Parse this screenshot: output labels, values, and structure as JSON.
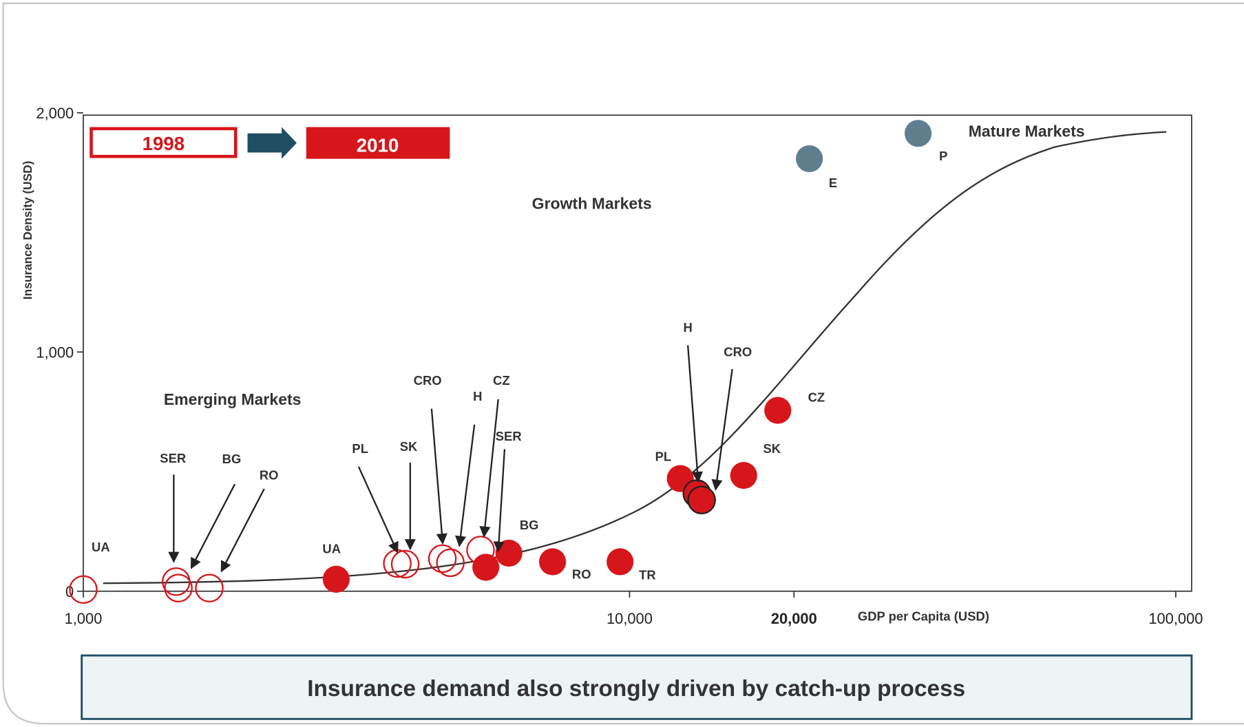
{
  "chart_data": {
    "type": "scatter",
    "xscale": "log",
    "xlim": [
      1000,
      100000
    ],
    "ylim": [
      0,
      2000
    ],
    "xticks": [
      {
        "value": 1000,
        "label": "1,000"
      },
      {
        "value": 10000,
        "label": "10,000"
      },
      {
        "value": 20000,
        "label": "20,000"
      },
      {
        "value": 100000,
        "label": "100,000"
      }
    ],
    "yticks": [
      0,
      {
        "value": 1000,
        "label": "1,000"
      },
      {
        "value": 2000,
        "label": "2,000"
      }
    ],
    "xlabel": "GDP per Capita (USD)",
    "ylabel": "Insurance Density (USD)",
    "annotations": [
      "Mature Markets",
      "Growth Markets",
      "Emerging Markets"
    ],
    "series": [
      {
        "name": "1998",
        "color": "#d7161b",
        "filled": false,
        "labels": [
          "UA",
          "SER",
          "BG",
          "RO",
          "PL",
          "SK",
          "CRO",
          "H",
          "CZ"
        ],
        "x": [
          1000,
          1479,
          1493,
          1701,
          3757,
          3884,
          4543,
          4699,
          5336
        ],
        "values": [
          7,
          40,
          13,
          13,
          116,
          113,
          136,
          119,
          172
        ]
      },
      {
        "name": "2010",
        "color": "#d7161b",
        "filled": true,
        "labels": [
          "UA",
          "SER",
          "BG",
          "RO",
          "TR",
          "PL",
          "H",
          "CRO",
          "SK",
          "CZ"
        ],
        "x": [
          2904,
          5456,
          6013,
          7228,
          9609,
          12387,
          13280,
          13552,
          16180,
          18680
        ],
        "values": [
          50,
          100,
          159,
          123,
          123,
          471,
          408,
          381,
          484,
          756
        ]
      },
      {
        "color": "#5f7f8f",
        "filled": true,
        "labels": [
          "E",
          "P"
        ],
        "x": [
          21340,
          33750
        ],
        "values": [
          1808,
          1914
        ]
      }
    ]
  },
  "banner": "Insurance demand also strongly driven by catch-up process"
}
